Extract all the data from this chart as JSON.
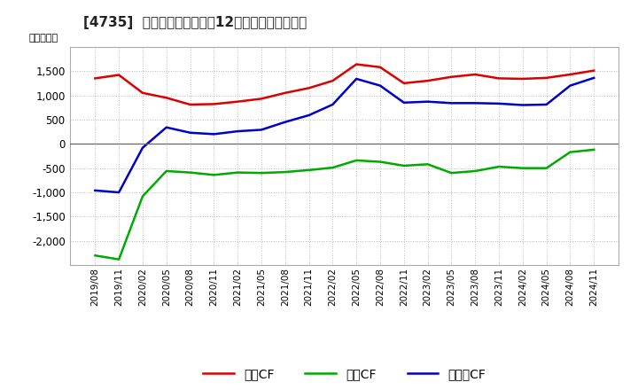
{
  "title": "[4735]  キャッシュフローの12か月移動合計の推移",
  "ylabel": "（百万円）",
  "background_color": "#ffffff",
  "plot_bg_color": "#ffffff",
  "grid_color": "#bbbbbb",
  "x_labels": [
    "2019/08",
    "2019/11",
    "2020/02",
    "2020/05",
    "2020/08",
    "2020/11",
    "2021/02",
    "2021/05",
    "2021/08",
    "2021/11",
    "2022/02",
    "2022/05",
    "2022/08",
    "2022/11",
    "2023/02",
    "2023/05",
    "2023/08",
    "2023/11",
    "2024/02",
    "2024/05",
    "2024/08",
    "2024/11"
  ],
  "operating_cf": [
    1350,
    1420,
    1050,
    950,
    810,
    820,
    870,
    930,
    1050,
    1150,
    1300,
    1640,
    1580,
    1250,
    1300,
    1380,
    1430,
    1350,
    1340,
    1360,
    1430,
    1510
  ],
  "investing_cf": [
    -2300,
    -2380,
    -1080,
    -560,
    -590,
    -640,
    -590,
    -600,
    -580,
    -540,
    -490,
    -340,
    -370,
    -450,
    -420,
    -600,
    -560,
    -470,
    -500,
    -500,
    -170,
    -120
  ],
  "free_cf": [
    -960,
    -1000,
    -80,
    340,
    230,
    200,
    260,
    290,
    450,
    590,
    810,
    1340,
    1200,
    850,
    870,
    840,
    840,
    830,
    800,
    810,
    1200,
    1360
  ],
  "operating_color": "#dd0000",
  "investing_color": "#00aa00",
  "free_color": "#0000cc",
  "line_width": 1.8,
  "ylim": [
    -2500,
    2000
  ],
  "yticks": [
    -2000,
    -1500,
    -1000,
    -500,
    0,
    500,
    1000,
    1500
  ],
  "legend_labels": [
    "営業CF",
    "投資CF",
    "フリーCF"
  ]
}
